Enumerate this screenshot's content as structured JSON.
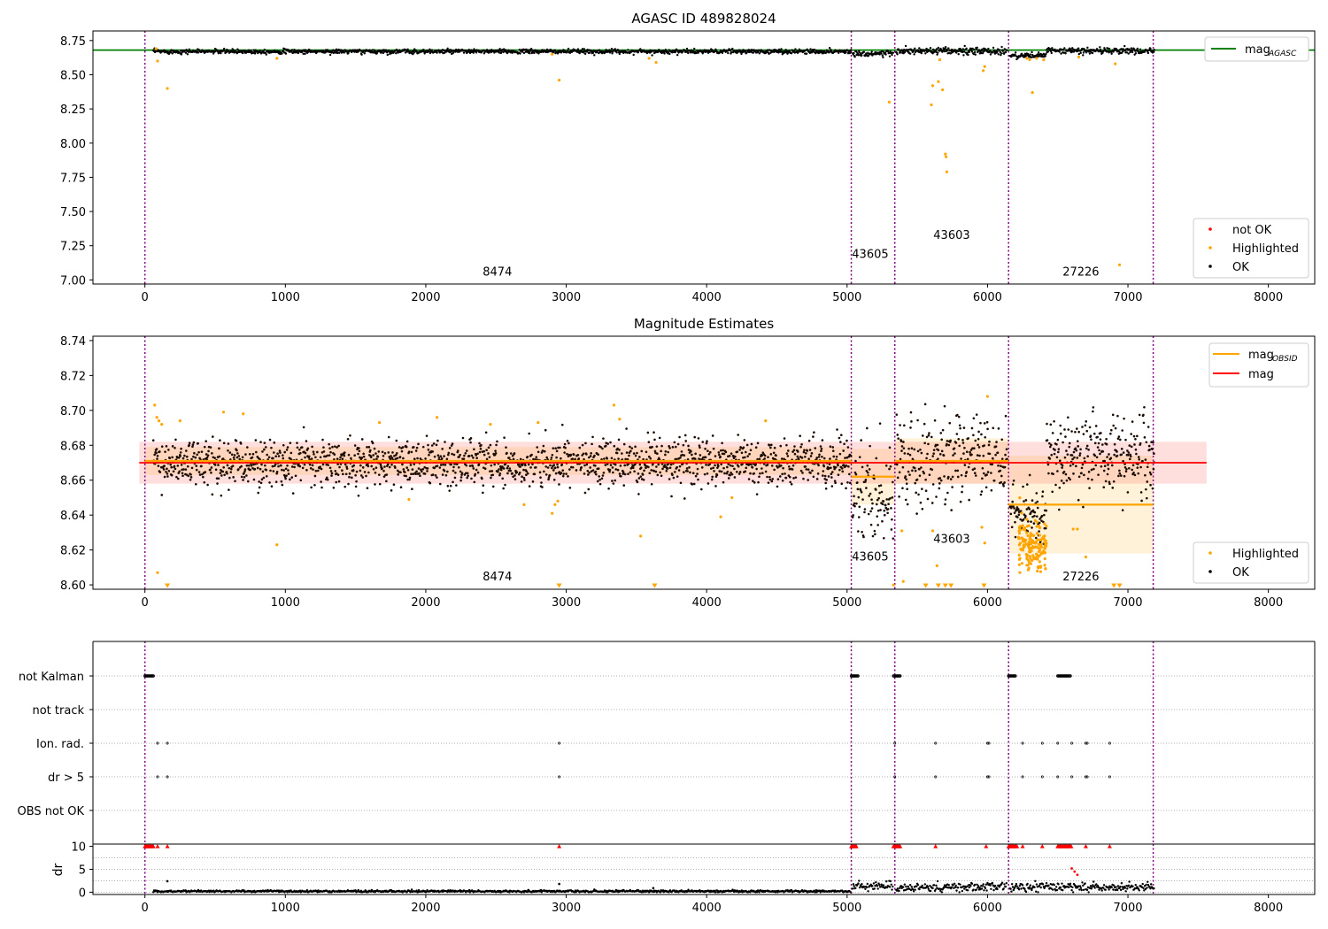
{
  "chart_data": [
    {
      "type": "scatter",
      "title": "AGASC ID 489828024",
      "xlim": [
        -370,
        8330
      ],
      "ylim": [
        6.97,
        8.82
      ],
      "x_ticks": [
        0,
        1000,
        2000,
        3000,
        4000,
        5000,
        6000,
        7000,
        8000
      ],
      "y_ticks": [
        7.0,
        7.25,
        7.5,
        7.75,
        8.0,
        8.25,
        8.5,
        8.75
      ],
      "y_tick_labels": [
        "7.00",
        "7.25",
        "7.50",
        "7.75",
        "8.00",
        "8.25",
        "8.50",
        "8.75"
      ],
      "obs_boundaries": [
        0,
        5030,
        5340,
        6150,
        7180
      ],
      "obs_labels": [
        {
          "text": "8474",
          "x": 2510,
          "y": 7.03
        },
        {
          "text": "43605",
          "x": 5165,
          "y": 7.16
        },
        {
          "text": "43603",
          "x": 5745,
          "y": 7.3
        },
        {
          "text": "27226",
          "x": 6665,
          "y": 7.03
        }
      ],
      "mag_agasc": 8.68,
      "legend_top": [
        {
          "label": "mag",
          "sub": "AGASC",
          "color": "#008000"
        }
      ],
      "legend_bottom": [
        {
          "label": "not OK",
          "color": "#ff0000"
        },
        {
          "label": "Highlighted",
          "color": "#ffa500"
        },
        {
          "label": "OK",
          "color": "#000000"
        }
      ],
      "ok_segments": [
        {
          "x0": 60,
          "x1": 5030,
          "mean": 8.67,
          "sd": 0.008
        },
        {
          "x0": 5040,
          "x1": 5330,
          "mean": 8.655,
          "sd": 0.012
        },
        {
          "x0": 5350,
          "x1": 6140,
          "mean": 8.672,
          "sd": 0.013
        },
        {
          "x0": 6160,
          "x1": 6420,
          "mean": 8.64,
          "sd": 0.01
        },
        {
          "x0": 6420,
          "x1": 7190,
          "mean": 8.675,
          "sd": 0.012
        }
      ],
      "highlighted": [
        {
          "x": 80,
          "y": 8.69
        },
        {
          "x": 90,
          "y": 8.6
        },
        {
          "x": 160,
          "y": 8.4
        },
        {
          "x": 940,
          "y": 8.62
        },
        {
          "x": 2950,
          "y": 8.46
        },
        {
          "x": 2900,
          "y": 8.65
        },
        {
          "x": 3640,
          "y": 8.59
        },
        {
          "x": 3590,
          "y": 8.62
        },
        {
          "x": 5300,
          "y": 8.3
        },
        {
          "x": 5600,
          "y": 8.28
        },
        {
          "x": 5610,
          "y": 8.42
        },
        {
          "x": 5650,
          "y": 8.45
        },
        {
          "x": 5660,
          "y": 8.61
        },
        {
          "x": 5680,
          "y": 8.39
        },
        {
          "x": 5700,
          "y": 7.92
        },
        {
          "x": 5705,
          "y": 7.9
        },
        {
          "x": 5710,
          "y": 7.79
        },
        {
          "x": 5970,
          "y": 8.53
        },
        {
          "x": 5980,
          "y": 8.56
        },
        {
          "x": 6280,
          "y": 8.62
        },
        {
          "x": 6300,
          "y": 8.61
        },
        {
          "x": 6320,
          "y": 8.37
        },
        {
          "x": 6350,
          "y": 8.62
        },
        {
          "x": 6400,
          "y": 8.61
        },
        {
          "x": 6650,
          "y": 8.63
        },
        {
          "x": 6910,
          "y": 8.58
        },
        {
          "x": 6940,
          "y": 7.11
        }
      ]
    },
    {
      "type": "scatter",
      "title": "Magnitude Estimates",
      "xlim": [
        -370,
        8330
      ],
      "ylim": [
        8.5975,
        8.7425
      ],
      "x_ticks": [
        0,
        1000,
        2000,
        3000,
        4000,
        5000,
        6000,
        7000,
        8000
      ],
      "y_ticks": [
        8.6,
        8.62,
        8.64,
        8.66,
        8.68,
        8.7,
        8.72,
        8.74
      ],
      "y_tick_labels": [
        "8.60",
        "8.62",
        "8.64",
        "8.66",
        "8.68",
        "8.70",
        "8.72",
        "8.74"
      ],
      "obs_boundaries": [
        0,
        5030,
        5340,
        6150,
        7180
      ],
      "obs_labels": [
        {
          "text": "8474",
          "x": 2510,
          "y": 8.6025
        },
        {
          "text": "43605",
          "x": 5165,
          "y": 8.614
        },
        {
          "text": "43603",
          "x": 5745,
          "y": 8.624
        },
        {
          "text": "27226",
          "x": 6665,
          "y": 8.6025
        }
      ],
      "mag": {
        "value": 8.67,
        "err": 0.012,
        "x0": -40,
        "x1": 7560
      },
      "mag_obsid": [
        {
          "x0": 0,
          "x1": 5030,
          "value": 8.671,
          "err": 0.008
        },
        {
          "x0": 5030,
          "x1": 5340,
          "value": 8.662,
          "err": 0.016
        },
        {
          "x0": 5340,
          "x1": 6150,
          "value": 8.671,
          "err": 0.013
        },
        {
          "x0": 6150,
          "x1": 7180,
          "value": 8.646,
          "err": 0.028
        }
      ],
      "legend_top": [
        {
          "label": "mag",
          "sub": "OBSID",
          "color": "#ffa500"
        },
        {
          "label": "mag",
          "sub": "",
          "color": "#ff0000"
        }
      ],
      "legend_bottom": [
        {
          "label": "Highlighted",
          "color": "#ffa500"
        },
        {
          "label": "OK",
          "color": "#000000"
        }
      ],
      "ok_segments": [
        {
          "x0": 60,
          "x1": 5030,
          "mean": 8.67,
          "sd": 0.0065
        },
        {
          "x0": 5040,
          "x1": 5330,
          "mean": 8.65,
          "sd": 0.012
        },
        {
          "x0": 5350,
          "x1": 6140,
          "mean": 8.672,
          "sd": 0.012
        },
        {
          "x0": 6160,
          "x1": 6420,
          "mean": 8.64,
          "sd": 0.008
        },
        {
          "x0": 6420,
          "x1": 7190,
          "mean": 8.675,
          "sd": 0.011
        }
      ],
      "highlighted": [
        {
          "x": 70,
          "y": 8.703
        },
        {
          "x": 85,
          "y": 8.696
        },
        {
          "x": 100,
          "y": 8.694
        },
        {
          "x": 120,
          "y": 8.692
        },
        {
          "x": 90,
          "y": 8.607
        },
        {
          "x": 160,
          "y": 8.599
        },
        {
          "x": 250,
          "y": 8.694
        },
        {
          "x": 560,
          "y": 8.699
        },
        {
          "x": 700,
          "y": 8.698
        },
        {
          "x": 940,
          "y": 8.623
        },
        {
          "x": 1670,
          "y": 8.693
        },
        {
          "x": 1880,
          "y": 8.649
        },
        {
          "x": 2080,
          "y": 8.696
        },
        {
          "x": 2460,
          "y": 8.692
        },
        {
          "x": 2700,
          "y": 8.646
        },
        {
          "x": 2800,
          "y": 8.693
        },
        {
          "x": 2900,
          "y": 8.641
        },
        {
          "x": 2920,
          "y": 8.646
        },
        {
          "x": 2940,
          "y": 8.648
        },
        {
          "x": 2950,
          "y": 8.599
        },
        {
          "x": 3340,
          "y": 8.703
        },
        {
          "x": 3380,
          "y": 8.695
        },
        {
          "x": 3530,
          "y": 8.628
        },
        {
          "x": 3630,
          "y": 8.599
        },
        {
          "x": 4100,
          "y": 8.639
        },
        {
          "x": 4180,
          "y": 8.65
        },
        {
          "x": 4420,
          "y": 8.694
        },
        {
          "x": 5020,
          "y": 8.67
        },
        {
          "x": 5330,
          "y": 8.6
        },
        {
          "x": 5400,
          "y": 8.602
        },
        {
          "x": 5390,
          "y": 8.631
        },
        {
          "x": 5560,
          "y": 8.599
        },
        {
          "x": 5610,
          "y": 8.631
        },
        {
          "x": 5640,
          "y": 8.611
        },
        {
          "x": 5650,
          "y": 8.599
        },
        {
          "x": 5700,
          "y": 8.599
        },
        {
          "x": 5740,
          "y": 8.599
        },
        {
          "x": 5960,
          "y": 8.633
        },
        {
          "x": 5975,
          "y": 8.599
        },
        {
          "x": 5980,
          "y": 8.624
        },
        {
          "x": 6000,
          "y": 8.708
        },
        {
          "x": 6230,
          "y": 8.65
        },
        {
          "x": 6610,
          "y": 8.632
        },
        {
          "x": 6640,
          "y": 8.632
        },
        {
          "x": 6700,
          "y": 8.616
        },
        {
          "x": 6900,
          "y": 8.599
        },
        {
          "x": 6940,
          "y": 8.599
        }
      ],
      "highlighted_cluster": {
        "x0": 6220,
        "x1": 6420,
        "mean": 8.622,
        "sd": 0.007,
        "count": 160
      }
    },
    {
      "type": "scatter",
      "categories": [
        "not Kalman",
        "not track",
        "Ion. rad.",
        "dr > 5",
        "OBS not OK"
      ],
      "xlim": [
        -370,
        8330
      ],
      "obs_boundaries": [
        0,
        5030,
        5340,
        6150,
        7180
      ],
      "flags": {
        "not Kalman": [
          {
            "x0": 0,
            "x1": 60
          },
          {
            "x0": 5030,
            "x1": 5080
          },
          {
            "x0": 5330,
            "x1": 5380
          },
          {
            "x0": 6150,
            "x1": 6200
          },
          {
            "x0": 6500,
            "x1": 6590
          }
        ],
        "not track": [],
        "Ion. rad.": [
          90,
          160,
          2950,
          5340,
          5630,
          6000,
          6010,
          6250,
          6390,
          6500,
          6600,
          6700,
          6710,
          6870
        ],
        "dr > 5": [
          90,
          160,
          2950,
          5340,
          5630,
          6000,
          6010,
          6250,
          6390,
          6500,
          6600,
          6700,
          6710,
          6870
        ],
        "OBS not OK": []
      }
    },
    {
      "type": "scatter",
      "ylabel": "dr",
      "xlim": [
        -370,
        8330
      ],
      "ylim": [
        -0.5,
        10.5
      ],
      "y_ticks": [
        0,
        5,
        10
      ],
      "y_tick_labels": [
        "0",
        "5",
        "10"
      ],
      "x_ticks": [
        0,
        1000,
        2000,
        3000,
        4000,
        5000,
        6000,
        7000,
        8000
      ],
      "obs_boundaries": [
        0,
        5030,
        5340,
        6150,
        7180
      ],
      "ok_segments": [
        {
          "x0": 60,
          "x1": 5030,
          "mean": 0.2,
          "sd": 0.12
        },
        {
          "x0": 5040,
          "x1": 5330,
          "mean": 1.3,
          "sd": 0.45
        },
        {
          "x0": 5350,
          "x1": 6140,
          "mean": 1.1,
          "sd": 0.5
        },
        {
          "x0": 6160,
          "x1": 7190,
          "mean": 1.1,
          "sd": 0.5
        }
      ],
      "capped_at_10": [
        {
          "x0": 0,
          "x1": 60
        },
        {
          "x0": 5030,
          "x1": 5070
        },
        {
          "x0": 5330,
          "x1": 5380
        },
        {
          "x0": 6150,
          "x1": 6210
        },
        {
          "x0": 6500,
          "x1": 6600
        }
      ],
      "capped_points": [
        90,
        160,
        2950,
        5630,
        5990,
        6250,
        6390,
        6700,
        6870
      ],
      "not_ok": [
        {
          "x": 6620,
          "y": 4.5
        },
        {
          "x": 6640,
          "y": 3.8
        },
        {
          "x": 6600,
          "y": 5.2
        }
      ],
      "ok_outliers": [
        {
          "x": 160,
          "y": 2.4
        },
        {
          "x": 2950,
          "y": 1.8
        },
        {
          "x": 3620,
          "y": 0.9
        }
      ]
    }
  ]
}
